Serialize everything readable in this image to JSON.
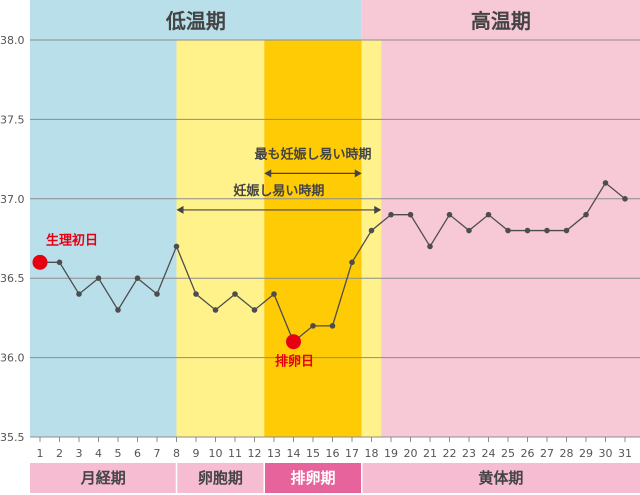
{
  "chart_data": {
    "type": "line",
    "x": [
      1,
      2,
      3,
      4,
      5,
      6,
      7,
      8,
      9,
      10,
      11,
      12,
      13,
      14,
      15,
      16,
      17,
      18,
      19,
      20,
      21,
      22,
      23,
      24,
      25,
      26,
      27,
      28,
      29,
      30,
      31
    ],
    "values": [
      36.6,
      36.6,
      36.4,
      36.5,
      36.3,
      36.5,
      36.4,
      36.7,
      36.4,
      36.3,
      36.4,
      36.3,
      36.4,
      36.1,
      36.2,
      36.2,
      36.6,
      36.8,
      36.9,
      36.9,
      36.7,
      36.9,
      36.8,
      36.9,
      36.8,
      36.8,
      36.8,
      36.8,
      36.9,
      37.1,
      37.0
    ],
    "ylim": [
      35.5,
      38.0
    ],
    "yticks": [
      "38.0",
      "37.5",
      "37.0",
      "36.5",
      "36.0",
      "35.5"
    ],
    "ytick_values": [
      38.0,
      37.5,
      37.0,
      36.5,
      36.0,
      35.5
    ],
    "grid": true,
    "series_color": "#4d4d4d",
    "top_bands": [
      {
        "label": "低温期",
        "from_day": 1,
        "to_day": 17.5,
        "color": "#b9e0ea"
      },
      {
        "label": "高温期",
        "from_day": 17.5,
        "to_day": 31,
        "color": "#f7c8d6"
      }
    ],
    "plot_bands": [
      {
        "from_day": 1,
        "to_day": 8,
        "color": "#b9e0ea"
      },
      {
        "from_day": 8,
        "to_day": 12.5,
        "color": "#fff28a"
      },
      {
        "from_day": 12.5,
        "to_day": 17.5,
        "color": "#ffcb05"
      },
      {
        "from_day": 17.5,
        "to_day": 18.5,
        "color": "#fff28a"
      },
      {
        "from_day": 18.5,
        "to_day": 31,
        "color": "#f7c8d6"
      }
    ],
    "annotations": [
      {
        "text": "妊娠し易い時期",
        "from_day": 8,
        "to_day": 18.5,
        "value": 36.93
      },
      {
        "text": "最も妊娠し易い時期",
        "from_day": 12.5,
        "to_day": 17.5,
        "value": 37.16
      }
    ],
    "markers": [
      {
        "label": "生理初日",
        "day": 1,
        "value": 36.6
      },
      {
        "label": "排卵日",
        "day": 14,
        "value": 36.1
      }
    ],
    "marker_color": "#e60012",
    "phase_bar": [
      {
        "label": "月経期",
        "from_day": 1,
        "to_day": 8,
        "color": "#f5bcd2",
        "light": false
      },
      {
        "label": "卵胞期",
        "from_day": 8,
        "to_day": 12.5,
        "color": "#f5bcd2",
        "light": false
      },
      {
        "label": "排卵期",
        "from_day": 12.5,
        "to_day": 17.5,
        "color": "#e6639b",
        "light": true
      },
      {
        "label": "黄体期",
        "from_day": 17.5,
        "to_day": 31,
        "color": "#f5bcd2",
        "light": false
      }
    ]
  }
}
